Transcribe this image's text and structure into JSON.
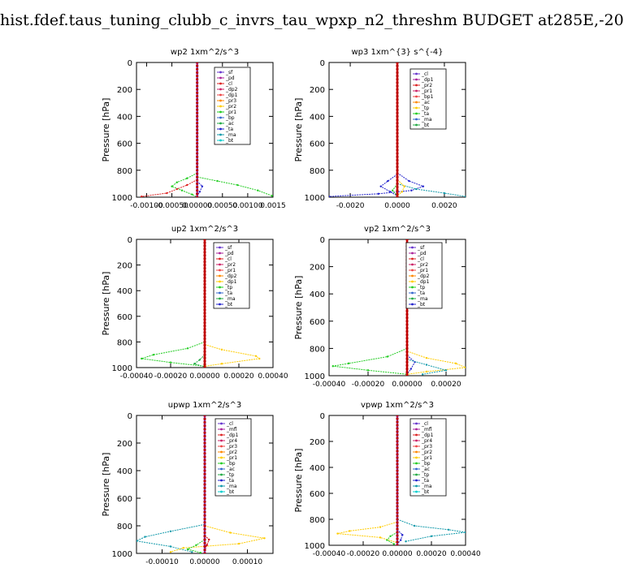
{
  "page_title": "hist.fdef.taus_tuning_clubb_c_invrs_tau_wpxp_n2_threshm  BUDGET at285E,-20",
  "chart_data": [
    {
      "type": "line",
      "title": "wp2  1xm^2/s^3",
      "ylabel": "Pressure [hPa]",
      "ylim": [
        1000,
        0
      ],
      "xlim": [
        -0.0012,
        0.0015
      ],
      "xticks": [
        "-0.00100",
        "-0.00050",
        "0.00000",
        "0.00050",
        "0.00100",
        "0.0015"
      ],
      "xtick_values": [
        -0.001,
        -0.0005,
        0,
        0.0005,
        0.001,
        0.0015
      ],
      "yticks": [
        0,
        200,
        400,
        600,
        800,
        1000
      ],
      "legend": [
        "_sf",
        "_pd",
        "_cl",
        "_dp2",
        "_dp1",
        "_pr3",
        "_pr2",
        "_pr1",
        "_bp",
        "_ac",
        "_ta",
        "_ma",
        "_bt"
      ],
      "series": [
        {
          "name": "_pr1",
          "color": "#22cc22",
          "points": [
            [
              0,
              820
            ],
            [
              -0.0002,
              860
            ],
            [
              -0.0004,
              890
            ],
            [
              -0.0005,
              920
            ],
            [
              -0.0003,
              950
            ],
            [
              -0.0001,
              980
            ],
            [
              0,
              1000
            ]
          ]
        },
        {
          "name": "_pr1b",
          "color": "#22cc22",
          "points": [
            [
              0,
              850
            ],
            [
              0.0004,
              880
            ],
            [
              0.0008,
              910
            ],
            [
              0.0012,
              950
            ],
            [
              0.00148,
              990
            ]
          ]
        },
        {
          "name": "_dp1",
          "color": "#dd2222",
          "points": [
            [
              0,
              870
            ],
            [
              -0.0002,
              910
            ],
            [
              -0.0004,
              940
            ],
            [
              -0.0006,
              970
            ],
            [
              -0.0011,
              995
            ]
          ]
        },
        {
          "name": "_ta",
          "color": "#2222cc",
          "points": [
            [
              0,
              880
            ],
            [
              0.0001,
              920
            ],
            [
              5e-05,
              960
            ],
            [
              0,
              990
            ]
          ]
        },
        {
          "name": "_bt",
          "color": "#8844cc",
          "points": [
            [
              0,
              0
            ],
            [
              0,
              1000
            ]
          ]
        }
      ]
    },
    {
      "type": "line",
      "title": "wp3  1xm^{3} s^{-4}",
      "ylabel": "Pressure [hPa]",
      "ylim": [
        1000,
        0
      ],
      "xlim": [
        -0.0029,
        0.0029
      ],
      "xticks": [
        "-0.0020",
        "0.0000",
        "0.0020"
      ],
      "xtick_values": [
        -0.002,
        0,
        0.002
      ],
      "yticks": [
        0,
        200,
        400,
        600,
        800,
        1000
      ],
      "legend": [
        "_cl",
        "_dp1",
        "_pr2",
        "_pr1",
        "_bp1",
        "_ac",
        "_tp",
        "_ta",
        "_ma",
        "_bt"
      ],
      "series": [
        {
          "name": "_ta",
          "color": "#2222cc",
          "points": [
            [
              0,
              820
            ],
            [
              0.0005,
              880
            ],
            [
              0.0011,
              920
            ],
            [
              0.0006,
              950
            ],
            [
              -0.0008,
              975
            ],
            [
              -0.0029,
              995
            ]
          ]
        },
        {
          "name": "_ta2",
          "color": "#2222cc",
          "points": [
            [
              0,
              830
            ],
            [
              -0.0004,
              880
            ],
            [
              -0.0007,
              920
            ],
            [
              -0.0003,
              960
            ],
            [
              0,
              990
            ]
          ]
        },
        {
          "name": "_ma",
          "color": "#1199aa",
          "points": [
            [
              0,
              900
            ],
            [
              0.0008,
              940
            ],
            [
              0.002,
              970
            ],
            [
              0.0029,
              995
            ]
          ]
        },
        {
          "name": "_pr1",
          "color": "#ffcc00",
          "points": [
            [
              0,
              870
            ],
            [
              0.0003,
              920
            ],
            [
              0.0002,
              960
            ],
            [
              0,
              990
            ]
          ]
        },
        {
          "name": "_ac",
          "color": "#22cc22",
          "points": [
            [
              0,
              900
            ],
            [
              -0.0002,
              950
            ],
            [
              0,
              990
            ]
          ]
        },
        {
          "name": "_cl",
          "color": "#cc0000",
          "points": [
            [
              0,
              0
            ],
            [
              0,
              1000
            ]
          ]
        }
      ]
    },
    {
      "type": "line",
      "title": "up2  1xm^2/s^3",
      "ylabel": "Pressure [hPa]",
      "ylim": [
        1000,
        0
      ],
      "xlim": [
        -0.0004,
        0.0004
      ],
      "xticks": [
        "-0.00040",
        "-0.00020",
        "0.00000",
        "0.00020",
        "0.00040"
      ],
      "xtick_values": [
        -0.0004,
        -0.0002,
        0,
        0.0002,
        0.0004
      ],
      "yticks": [
        0,
        200,
        400,
        600,
        800,
        1000
      ],
      "legend": [
        "_sf",
        "_pd",
        "_cl",
        "_pr2",
        "_pr1",
        "_dp2",
        "_dp1",
        "_tp",
        "_ta",
        "_ma",
        "_bt"
      ],
      "series": [
        {
          "name": "_pr1",
          "color": "#22cc22",
          "points": [
            [
              0,
              800
            ],
            [
              -0.0001,
              850
            ],
            [
              -0.0003,
              900
            ],
            [
              -0.00037,
              930
            ],
            [
              -0.0002,
              960
            ],
            [
              0,
              990
            ]
          ]
        },
        {
          "name": "_pr2",
          "color": "#ffcc00",
          "points": [
            [
              0,
              820
            ],
            [
              0.0001,
              860
            ],
            [
              0.0003,
              910
            ],
            [
              0.00032,
              930
            ],
            [
              0.0001,
              970
            ],
            [
              0,
              990
            ]
          ]
        },
        {
          "name": "_dp1",
          "color": "#22aa44",
          "points": [
            [
              0,
              900
            ],
            [
              -3e-05,
              940
            ],
            [
              -6e-05,
              970
            ],
            [
              0,
              995
            ]
          ]
        },
        {
          "name": "_cl",
          "color": "#cc0000",
          "points": [
            [
              0,
              0
            ],
            [
              0,
              1000
            ]
          ]
        }
      ]
    },
    {
      "type": "line",
      "title": "vp2  1xm^2/s^3",
      "ylabel": "Pressure [hPa]",
      "ylim": [
        1000,
        0
      ],
      "xlim": [
        -0.0004,
        0.0003
      ],
      "xticks": [
        "-0.00040",
        "-0.00020",
        "0.00000",
        "0.00020"
      ],
      "xtick_values": [
        -0.0004,
        -0.0002,
        0,
        0.0002
      ],
      "yticks": [
        0,
        200,
        400,
        600,
        800,
        1000
      ],
      "legend": [
        "_sf",
        "_pd",
        "_cl",
        "_pr2",
        "_pr1",
        "_dp2",
        "_dp1",
        "_tp",
        "_ta",
        "_ma",
        "_bt"
      ],
      "series": [
        {
          "name": "_pr1",
          "color": "#22cc22",
          "points": [
            [
              0,
              800
            ],
            [
              -0.0001,
              860
            ],
            [
              -0.0003,
              910
            ],
            [
              -0.00038,
              930
            ],
            [
              -0.0002,
              960
            ],
            [
              0,
              990
            ]
          ]
        },
        {
          "name": "_pr2",
          "color": "#ffcc00",
          "points": [
            [
              0,
              820
            ],
            [
              0.0001,
              870
            ],
            [
              0.00025,
              910
            ],
            [
              0.0003,
              940
            ],
            [
              0.0001,
              970
            ],
            [
              0,
              990
            ]
          ]
        },
        {
          "name": "_ta",
          "color": "#2222cc",
          "points": [
            [
              0,
              850
            ],
            [
              4e-05,
              900
            ],
            [
              2e-05,
              950
            ],
            [
              0,
              990
            ]
          ]
        },
        {
          "name": "_ma",
          "color": "#1199aa",
          "points": [
            [
              0,
              880
            ],
            [
              0.0001,
              920
            ],
            [
              0.0002,
              960
            ],
            [
              8e-05,
              990
            ]
          ]
        },
        {
          "name": "_cl",
          "color": "#cc0000",
          "points": [
            [
              0,
              0
            ],
            [
              0,
              1000
            ]
          ]
        }
      ]
    },
    {
      "type": "line",
      "title": "upwp  1xm^2/s^3",
      "ylabel": "Pressure [hPa]",
      "ylim": [
        1000,
        0
      ],
      "xlim": [
        -0.00016,
        0.00016
      ],
      "xticks": [
        "-0.00010",
        "0.00000",
        "0.00010"
      ],
      "xtick_values": [
        -0.0001,
        0,
        0.0001
      ],
      "yticks": [
        0,
        200,
        400,
        600,
        800,
        1000
      ],
      "legend": [
        "_cl",
        "_mfl",
        "_dp1",
        "_pr4",
        "_pr3",
        "_pr2",
        "_pr1",
        "_bp",
        "_ac",
        "_tp",
        "_ta",
        "_ma",
        "_bt"
      ],
      "series": [
        {
          "name": "_ma",
          "color": "#1199aa",
          "points": [
            [
              0,
              790
            ],
            [
              -8e-05,
              840
            ],
            [
              -0.00014,
              880
            ],
            [
              -0.00016,
              910
            ],
            [
              -8e-05,
              950
            ],
            [
              -3e-05,
              990
            ]
          ]
        },
        {
          "name": "_pr1",
          "color": "#ffcc00",
          "points": [
            [
              0,
              800
            ],
            [
              6e-05,
              850
            ],
            [
              0.00014,
              890
            ],
            [
              8e-05,
              930
            ],
            [
              -5e-05,
              960
            ],
            [
              -8e-05,
              990
            ]
          ]
        },
        {
          "name": "_ac",
          "color": "#22cc22",
          "points": [
            [
              0,
              900
            ],
            [
              -2e-05,
              940
            ],
            [
              -4e-05,
              970
            ],
            [
              -1e-05,
              995
            ]
          ]
        },
        {
          "name": "_cl",
          "color": "#cc0000",
          "points": [
            [
              0,
              870
            ],
            [
              1e-05,
              900
            ],
            [
              5e-06,
              940
            ],
            [
              0,
              980
            ]
          ]
        },
        {
          "name": "_bt",
          "color": "#8844cc",
          "points": [
            [
              0,
              0
            ],
            [
              0,
              1000
            ]
          ]
        }
      ]
    },
    {
      "type": "line",
      "title": "vpwp  1xm^2/s^3",
      "ylabel": "Pressure [hPa]",
      "ylim": [
        1000,
        0
      ],
      "xlim": [
        -0.0004,
        0.0004
      ],
      "xticks": [
        "-0.00040",
        "-0.00020",
        "0.00000",
        "0.00020",
        "0.00040"
      ],
      "xtick_values": [
        -0.0004,
        -0.0002,
        0,
        0.0002,
        0.0004
      ],
      "yticks": [
        0,
        200,
        400,
        600,
        800,
        1000
      ],
      "legend": [
        "_cl",
        "_mfl",
        "_dp1",
        "_pr4",
        "_pr3",
        "_pr2",
        "_pr1",
        "_bp",
        "_ac",
        "_tp",
        "_ta",
        "_ma",
        "_bt"
      ],
      "series": [
        {
          "name": "_ma",
          "color": "#1199aa",
          "points": [
            [
              0,
              800
            ],
            [
              0.0001,
              850
            ],
            [
              0.0003,
              880
            ],
            [
              0.0004,
              900
            ],
            [
              0.0002,
              930
            ],
            [
              5e-05,
              970
            ]
          ]
        },
        {
          "name": "_pr1",
          "color": "#ffcc00",
          "points": [
            [
              0,
              820
            ],
            [
              -0.0001,
              860
            ],
            [
              -0.00028,
              890
            ],
            [
              -0.00035,
              910
            ],
            [
              -0.0001,
              940
            ],
            [
              0,
              980
            ]
          ]
        },
        {
          "name": "_ac",
          "color": "#22cc22",
          "points": [
            [
              0,
              900
            ],
            [
              -4e-05,
              930
            ],
            [
              -6e-05,
              960
            ],
            [
              -2e-05,
              990
            ]
          ]
        },
        {
          "name": "_ta",
          "color": "#2222cc",
          "points": [
            [
              0,
              880
            ],
            [
              3e-05,
              920
            ],
            [
              2e-05,
              960
            ],
            [
              0,
              990
            ]
          ]
        },
        {
          "name": "_bt",
          "color": "#8844cc",
          "points": [
            [
              0,
              0
            ],
            [
              0,
              1000
            ]
          ]
        }
      ]
    }
  ]
}
